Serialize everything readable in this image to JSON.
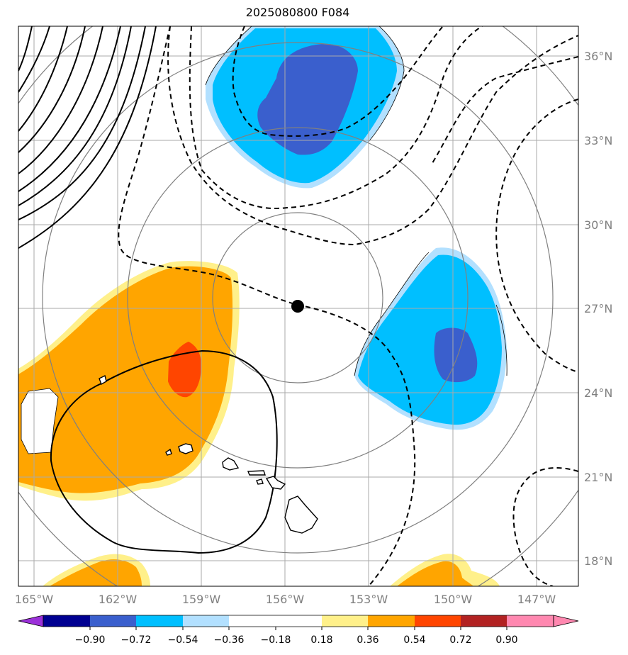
{
  "title": "2025080800 F084",
  "map": {
    "lon_labels": [
      "165°W",
      "162°W",
      "159°W",
      "156°W",
      "153°W",
      "150°W",
      "147°W"
    ],
    "lat_labels": [
      "36°N",
      "33°N",
      "30°N",
      "27°N",
      "24°N",
      "21°N",
      "18°N"
    ],
    "center_marker": "black-dot-storm-center",
    "colors": {
      "grid": "#aaaaaa",
      "range_rings": "#808080",
      "coast": "#000000"
    }
  },
  "colorbar": {
    "tick_labels": [
      "−0.90",
      "−0.72",
      "−0.54",
      "−0.36",
      "−0.18",
      "0.18",
      "0.36",
      "0.54",
      "0.72",
      "0.90"
    ],
    "colors": [
      "#9b30d9",
      "#000091",
      "#3a5fcd",
      "#00bfff",
      "#b2e0ff",
      "#ffffff",
      "#fff08a",
      "#ffa500",
      "#ff4500",
      "#b22222",
      "#ff88b0"
    ]
  }
}
